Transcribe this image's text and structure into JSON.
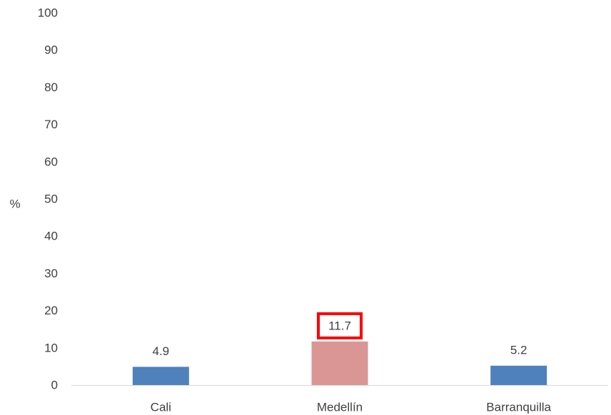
{
  "chart_data": {
    "type": "bar",
    "categories": [
      "Cali",
      "Medellín",
      "Barranquilla"
    ],
    "values": [
      4.9,
      11.7,
      5.2
    ],
    "value_labels": [
      "4.9",
      "11.7",
      "5.2"
    ],
    "ylabel": "%",
    "xlabel": "",
    "ylim": [
      0,
      100
    ],
    "yticks": [
      0,
      10,
      20,
      30,
      40,
      50,
      60,
      70,
      80,
      90,
      100
    ],
    "grid": false,
    "legend": "none",
    "highlighted_category": "Medellín",
    "colors": {
      "bar": "#4f81bd",
      "highlight_bar": "#d99694",
      "highlight_box": "#ff0000",
      "axis": "#d9d9d9",
      "text": "#404040"
    }
  }
}
